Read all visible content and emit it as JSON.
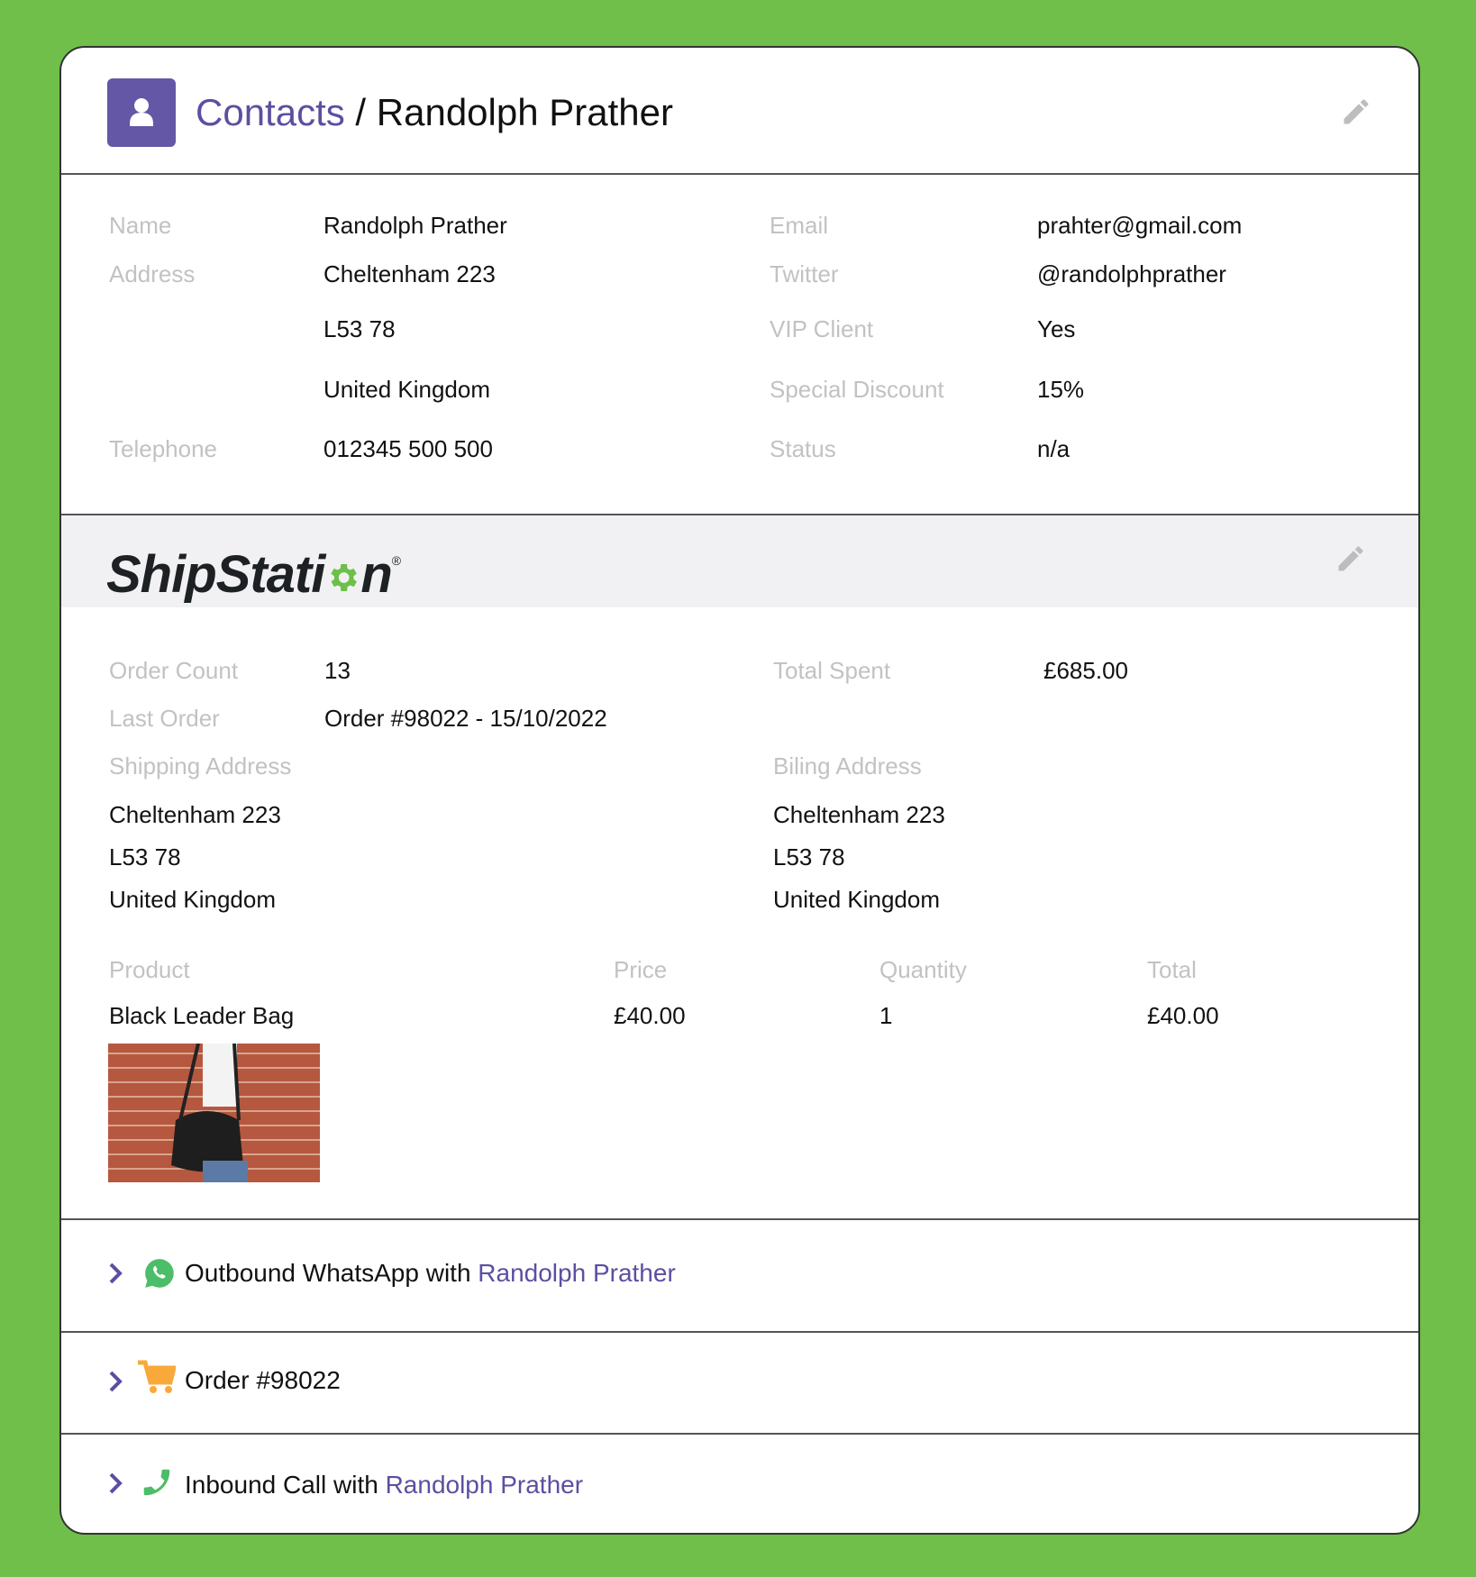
{
  "colors": {
    "background": "#6fbf4a",
    "accent": "#5c4fa0",
    "label": "#c2c2c2",
    "whatsapp": "#4cbd68",
    "cart": "#f8a93a",
    "phone": "#4cbd68",
    "logo_gear": "#6cc04a"
  },
  "header": {
    "icon": "person-icon",
    "breadcrumb_root": "Contacts",
    "separator": "/",
    "title": "Randolph Prather",
    "edit_icon": "pencil-icon"
  },
  "contact": {
    "name": {
      "label": "Name",
      "value": "Randolph Prather"
    },
    "address": {
      "label": "Address",
      "lines": [
        "Cheltenham 223",
        "L53 78",
        "United Kingdom"
      ]
    },
    "telephone": {
      "label": "Telephone",
      "value": "012345 500 500"
    },
    "email": {
      "label": "Email",
      "value": "prahter@gmail.com"
    },
    "twitter": {
      "label": "Twitter",
      "value": "@randolphprather"
    },
    "vip": {
      "label": "VIP Client",
      "value": "Yes"
    },
    "discount": {
      "label": "Special Discount",
      "value": "15%"
    },
    "status": {
      "label": "Status",
      "value": "n/a"
    }
  },
  "shipstation": {
    "logo": "ShipStation",
    "order_count": {
      "label": "Order Count",
      "value": "13"
    },
    "total_spent": {
      "label": "Total Spent",
      "value": "£685.00"
    },
    "last_order": {
      "label": "Last Order",
      "value": "Order #98022 - 15/10/2022"
    },
    "shipping": {
      "label": "Shipping Address",
      "lines": [
        "Cheltenham 223",
        "L53 78",
        "United Kingdom"
      ]
    },
    "billing": {
      "label": "Biling Address",
      "lines": [
        "Cheltenham 223",
        "L53 78",
        "United Kingdom"
      ]
    },
    "table": {
      "headers": [
        "Product",
        "Price",
        "Quantity",
        "Total"
      ],
      "rows": [
        [
          "Black Leader Bag",
          "£40.00",
          "1",
          "£40.00"
        ]
      ]
    }
  },
  "activity": [
    {
      "icon": "whatsapp-icon",
      "text": "Outbound WhatsApp with ",
      "link": "Randolph Prather"
    },
    {
      "icon": "cart-icon",
      "text": "Order #98022",
      "link": ""
    },
    {
      "icon": "phone-icon",
      "text": "Inbound Call with ",
      "link": "Randolph Prather"
    }
  ]
}
